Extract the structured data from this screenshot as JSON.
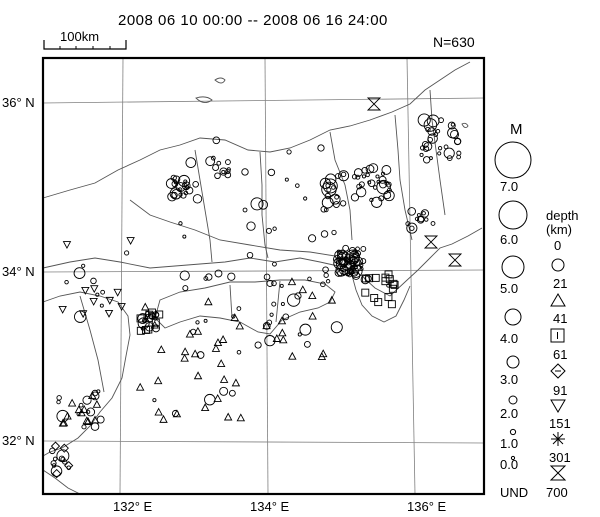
{
  "header": {
    "title": "2008 06 10 00:00 -- 2008 06 16 24:00",
    "scale_label": "100km",
    "count": "N=630"
  },
  "axes": {
    "lat_labels": [
      "36° N",
      "34° N",
      "32° N"
    ],
    "lon_labels": [
      "132° E",
      "134° E",
      "136° E"
    ]
  },
  "legend": {
    "magnitude_title": "M",
    "magnitudes": [
      "7.0",
      "6.0",
      "5.0",
      "4.0",
      "3.0",
      "2.0",
      "1.0",
      "0.0"
    ],
    "depth_title": "depth",
    "depth_unit": "(km)",
    "depths": [
      "0",
      "21",
      "41",
      "61",
      "91",
      "151",
      "301",
      "700"
    ],
    "und_label": "UND",
    "depth_symbols": [
      "circle-icon",
      "triangle-icon",
      "square-icon",
      "diamond-icon",
      "inverted-triangle-icon",
      "asterisk-icon",
      "hourglass-icon"
    ]
  },
  "colors": {
    "ink": "#000000",
    "grid": "#808080",
    "background": "#ffffff"
  }
}
